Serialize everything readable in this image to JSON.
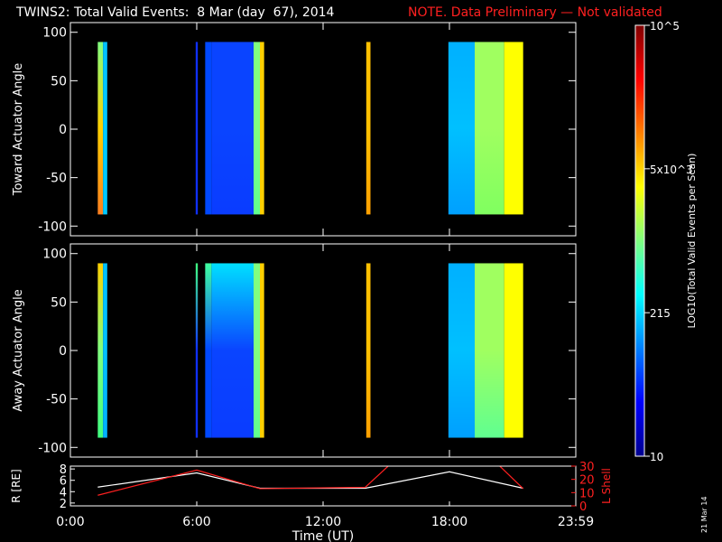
{
  "header": {
    "title": "TWINS2: Total Valid Events:  8 Mar (day  67), 2014",
    "note": "NOTE. Data Preliminary — Not validated",
    "note_color": "#ff2020"
  },
  "side_date": "21 Mar 14",
  "colorbar": {
    "label": "LOG10(Total Valid Events per Scan)",
    "ticks": [
      "10",
      "215",
      "5x10^3",
      "10^5"
    ],
    "colormap": [
      "#00008f",
      "#0000ff",
      "#0080ff",
      "#00ffff",
      "#80ff80",
      "#ffff00",
      "#ff8000",
      "#ff0000",
      "#800000"
    ]
  },
  "x_axis": {
    "label": "Time (UT)",
    "ticks": [
      "0:00",
      "6:00",
      "12:00",
      "18:00",
      "23:59"
    ]
  },
  "chart_data": [
    {
      "type": "heatmap",
      "ylabel": "Toward Actuator Angle",
      "ylim": [
        -110,
        110
      ],
      "yticks": [
        "100",
        "50",
        "0",
        "-50",
        "-100"
      ],
      "xlim_hours": [
        0,
        24
      ],
      "data_angle_range": [
        -88,
        90
      ],
      "blocks": [
        {
          "t0": 1.3,
          "t1": 1.55,
          "low": "#ff8020",
          "mid": "#ffd000",
          "high": "#80ff80"
        },
        {
          "t0": 1.55,
          "t1": 1.75,
          "low": "#00c8ff",
          "mid": "#00c8ff",
          "high": "#00c0ff"
        },
        {
          "t0": 5.95,
          "t1": 6.05,
          "low": "#1030ff",
          "mid": "#1030ff",
          "high": "#1030ff"
        },
        {
          "t0": 6.4,
          "t1": 6.7,
          "low": "#0048ff",
          "mid": "#0048ff",
          "high": "#0048ff"
        },
        {
          "t0": 6.7,
          "t1": 8.7,
          "low": "#0a3cff",
          "mid": "#0a44ff",
          "high": "#0a44ff"
        },
        {
          "t0": 8.7,
          "t1": 9.0,
          "low": "#60ff90",
          "mid": "#80ff80",
          "high": "#80ff80"
        },
        {
          "t0": 9.0,
          "t1": 9.2,
          "low": "#ffd000",
          "mid": "#ffd000",
          "high": "#ffd000"
        },
        {
          "t0": 14.05,
          "t1": 14.25,
          "low": "#ffa000",
          "mid": "#ffc000",
          "high": "#ffc000"
        },
        {
          "t0": 17.95,
          "t1": 19.2,
          "low": "#00a0ff",
          "mid": "#00c0ff",
          "high": "#00b0ff"
        },
        {
          "t0": 19.2,
          "t1": 20.6,
          "low": "#80ff60",
          "mid": "#a0ff60",
          "high": "#a0ff60"
        },
        {
          "t0": 20.6,
          "t1": 21.5,
          "low": "#ffff00",
          "mid": "#ffff00",
          "high": "#ffff00"
        }
      ]
    },
    {
      "type": "heatmap",
      "ylabel": "Away Actuator Angle",
      "ylim": [
        -110,
        110
      ],
      "yticks": [
        "100",
        "50",
        "0",
        "-50",
        "-100"
      ],
      "xlim_hours": [
        0,
        24
      ],
      "data_angle_range": [
        -90,
        90
      ],
      "blocks": [
        {
          "t0": 1.3,
          "t1": 1.55,
          "low": "#40ff80",
          "mid": "#80ff80",
          "high": "#ffd000"
        },
        {
          "t0": 1.55,
          "t1": 1.75,
          "low": "#00b0ff",
          "mid": "#00c0ff",
          "high": "#00c0ff"
        },
        {
          "t0": 5.95,
          "t1": 6.05,
          "low": "#1030ff",
          "mid": "#1030ff",
          "high": "#40ff80"
        },
        {
          "t0": 6.4,
          "t1": 6.7,
          "low": "#0048ff",
          "mid": "#0048ff",
          "high": "#40ffa0"
        },
        {
          "t0": 6.7,
          "t1": 8.7,
          "low": "#0a3cff",
          "mid": "#0a44ff",
          "high": "#00e0ff"
        },
        {
          "t0": 8.7,
          "t1": 9.0,
          "low": "#60ff90",
          "mid": "#80ff80",
          "high": "#80ff80"
        },
        {
          "t0": 9.0,
          "t1": 9.2,
          "low": "#ffd000",
          "mid": "#ffd000",
          "high": "#ffd000"
        },
        {
          "t0": 14.05,
          "t1": 14.25,
          "low": "#ffa000",
          "mid": "#ffc000",
          "high": "#ffc000"
        },
        {
          "t0": 17.95,
          "t1": 19.2,
          "low": "#00a0ff",
          "mid": "#00c0ff",
          "high": "#00b0ff"
        },
        {
          "t0": 19.2,
          "t1": 20.6,
          "low": "#60ff90",
          "mid": "#a0ff60",
          "high": "#a0ff60"
        },
        {
          "t0": 20.6,
          "t1": 21.5,
          "low": "#ffff00",
          "mid": "#ffff00",
          "high": "#ffff00"
        }
      ]
    },
    {
      "type": "line",
      "ylabel_left": "R [RE]",
      "ylabel_right": "L Shell",
      "yticks_left": [
        "8",
        "6",
        "4",
        "2"
      ],
      "yticks_right": [
        "30",
        "20",
        "10",
        "0"
      ],
      "ylim_left": [
        1.5,
        8.5
      ],
      "ylim_right": [
        0,
        30
      ],
      "series": [
        {
          "name": "R",
          "axis": "left",
          "color": "#ffffff",
          "x": [
            1.3,
            6.0,
            9.0,
            14.0,
            18.0,
            21.5
          ],
          "y": [
            4.8,
            7.3,
            4.6,
            4.6,
            7.5,
            4.6
          ]
        },
        {
          "name": "L Shell",
          "axis": "right",
          "color": "#ff2020",
          "x": [
            1.3,
            6.0,
            9.0,
            14.0,
            15.5,
            20.0,
            21.5
          ],
          "y": [
            8.0,
            27.0,
            13.0,
            14.0,
            36.0,
            36.0,
            13.0
          ]
        }
      ]
    }
  ]
}
